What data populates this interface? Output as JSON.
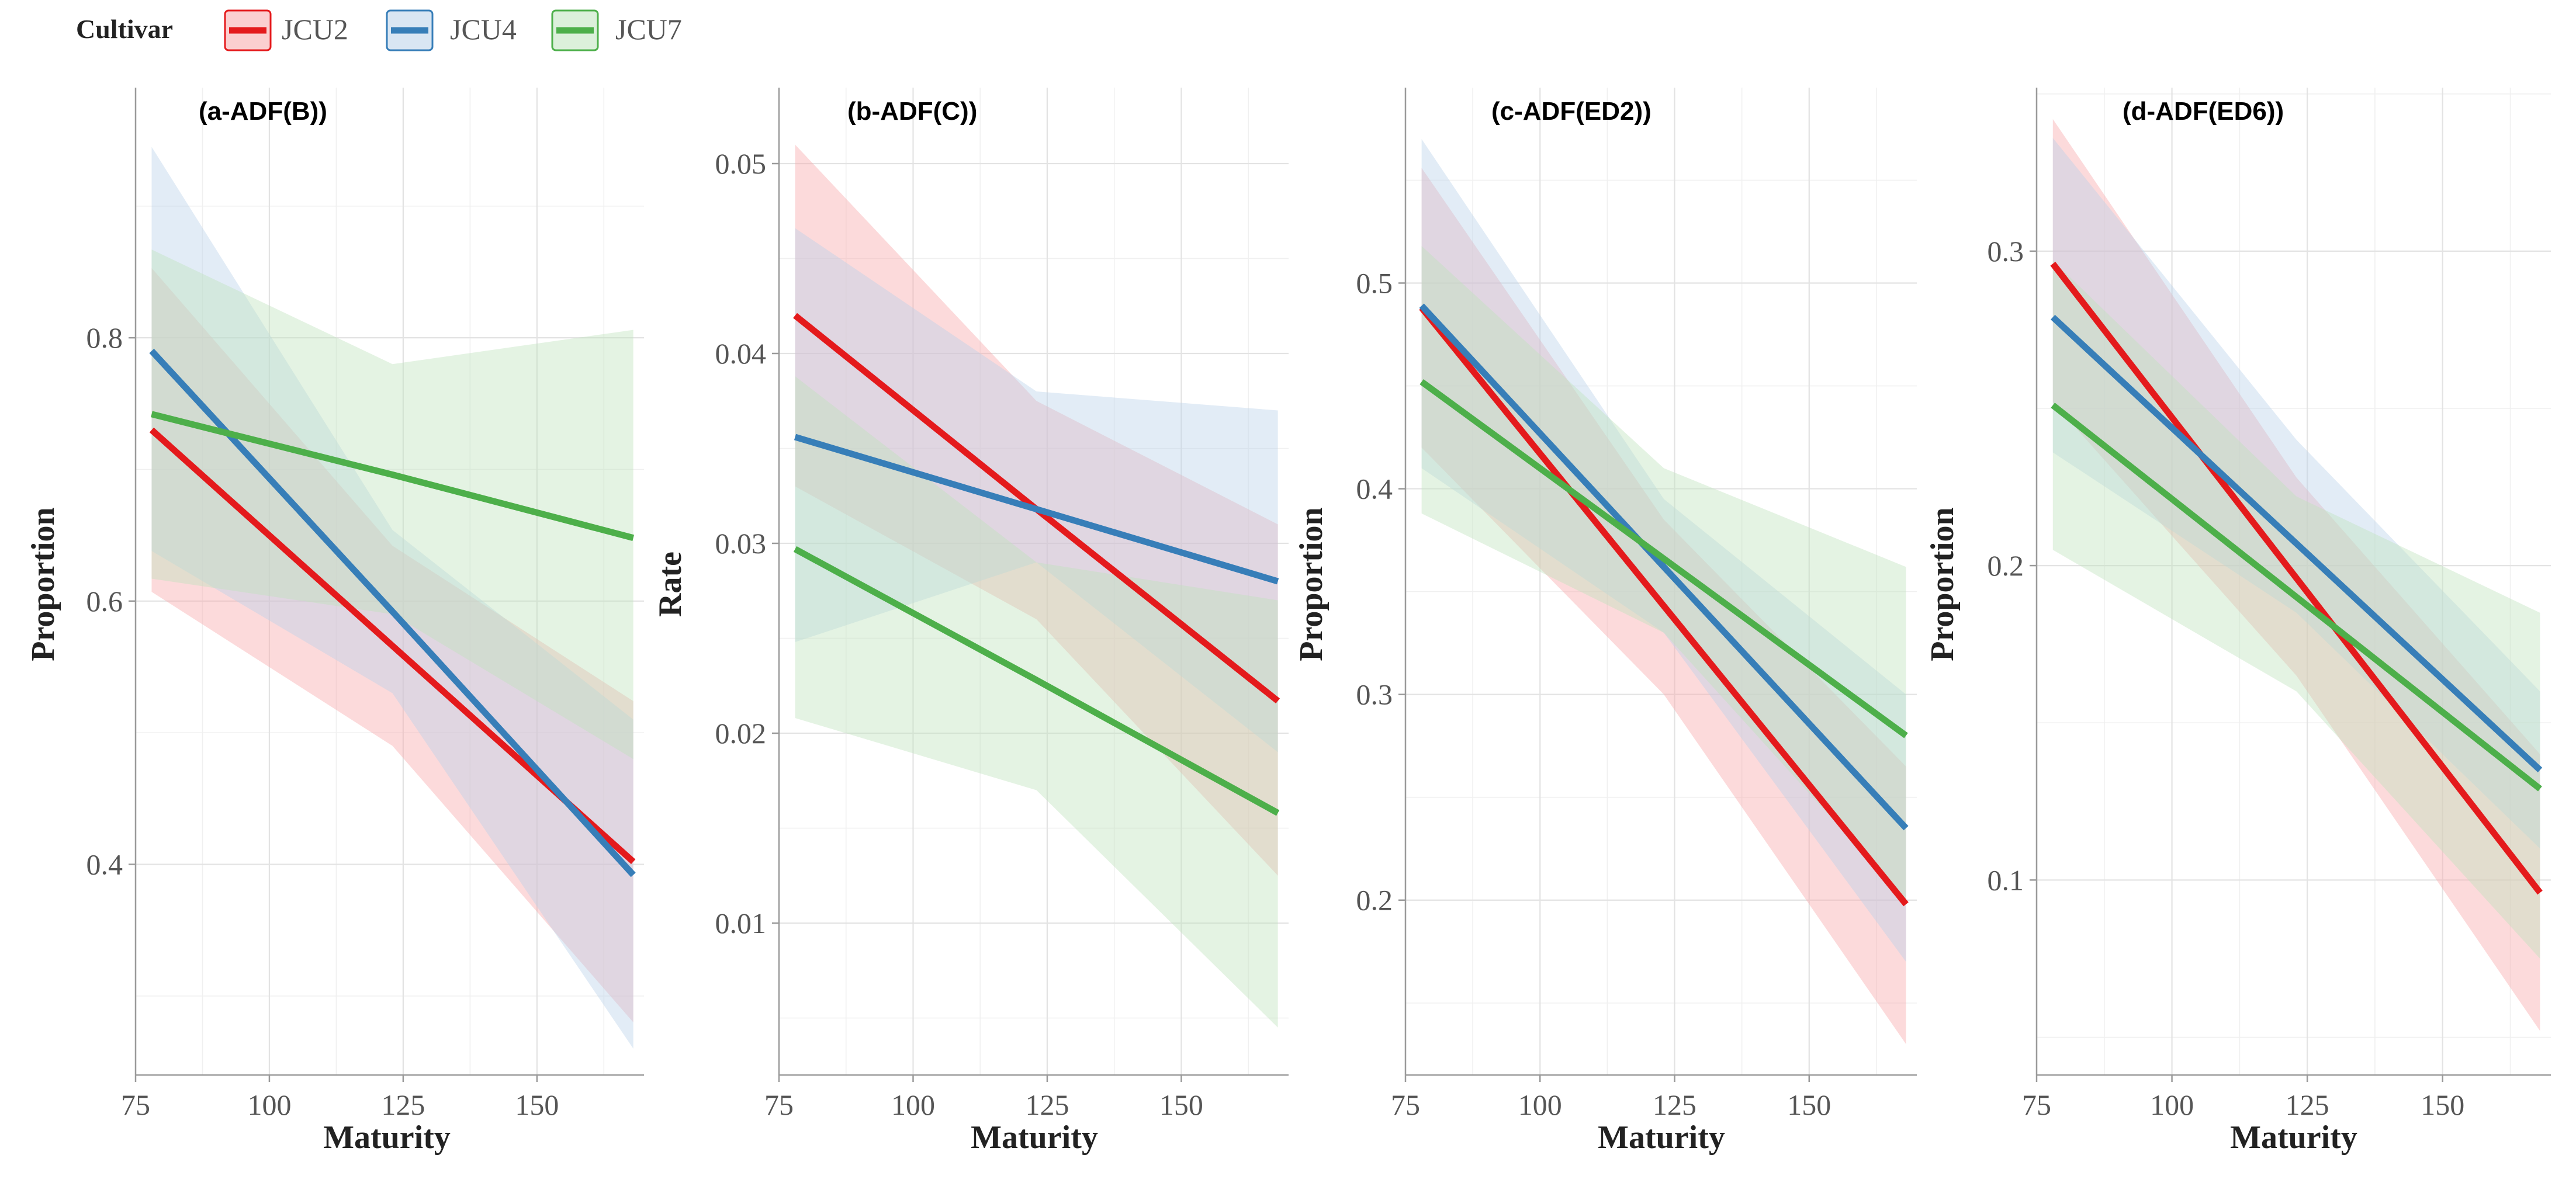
{
  "legend": {
    "title": "Cultivar",
    "entries": [
      {
        "name": "JCU2",
        "color": "#E41A1C",
        "fill": "#F7A7AA"
      },
      {
        "name": "JCU4",
        "color": "#377EB8",
        "fill": "#B9D1EA"
      },
      {
        "name": "JCU7",
        "color": "#4DAF4A",
        "fill": "#BFE3BD"
      }
    ]
  },
  "chart_data": [
    {
      "type": "line",
      "title": "(a-ADF(B))",
      "xlabel": "Maturity",
      "ylabel": "Proportion",
      "xlim": [
        75,
        170
      ],
      "ylim": [
        0.24,
        0.99
      ],
      "xticks": [
        75,
        100,
        125,
        150
      ],
      "yticks": [
        0.4,
        0.6,
        0.8
      ],
      "grid": true,
      "series": [
        {
          "name": "JCU2",
          "x": [
            78,
            123,
            168
          ],
          "y": [
            0.73,
            0.566,
            0.402
          ],
          "lower": [
            0.607,
            0.49,
            0.28
          ],
          "upper": [
            0.853,
            0.642,
            0.524
          ]
        },
        {
          "name": "JCU4",
          "x": [
            78,
            123,
            168
          ],
          "y": [
            0.79,
            0.592,
            0.392
          ],
          "lower": [
            0.638,
            0.53,
            0.26
          ],
          "upper": [
            0.945,
            0.654,
            0.51
          ]
        },
        {
          "name": "JCU7",
          "x": [
            78,
            123,
            168
          ],
          "y": [
            0.742,
            0.696,
            0.648
          ],
          "lower": [
            0.617,
            0.59,
            0.48
          ],
          "upper": [
            0.867,
            0.78,
            0.806
          ]
        }
      ]
    },
    {
      "type": "line",
      "title": "(b-ADF(C))",
      "xlabel": "Maturity",
      "ylabel": "Rate",
      "xlim": [
        75,
        170
      ],
      "ylim": [
        0.002,
        0.054
      ],
      "xticks": [
        75,
        100,
        125,
        150
      ],
      "yticks": [
        0.01,
        0.02,
        0.03,
        0.04,
        0.05
      ],
      "grid": true,
      "series": [
        {
          "name": "JCU2",
          "x": [
            78,
            123,
            168
          ],
          "y": [
            0.042,
            0.0318,
            0.0217
          ],
          "lower": [
            0.033,
            0.026,
            0.0125
          ],
          "upper": [
            0.051,
            0.0375,
            0.031
          ]
        },
        {
          "name": "JCU4",
          "x": [
            78,
            123,
            168
          ],
          "y": [
            0.0356,
            0.0318,
            0.028
          ],
          "lower": [
            0.0248,
            0.029,
            0.019
          ],
          "upper": [
            0.0466,
            0.038,
            0.037
          ]
        },
        {
          "name": "JCU7",
          "x": [
            78,
            123,
            168
          ],
          "y": [
            0.0297,
            0.0228,
            0.0158
          ],
          "lower": [
            0.0208,
            0.017,
            0.0045
          ],
          "upper": [
            0.0388,
            0.029,
            0.027
          ]
        }
      ]
    },
    {
      "type": "line",
      "title": "(c-ADF(ED2))",
      "xlabel": "Maturity",
      "ylabel": "Proportion",
      "xlim": [
        75,
        170
      ],
      "ylim": [
        0.115,
        0.595
      ],
      "xticks": [
        75,
        100,
        125,
        150
      ],
      "yticks": [
        0.2,
        0.3,
        0.4,
        0.5
      ],
      "grid": true,
      "series": [
        {
          "name": "JCU2",
          "x": [
            78,
            123,
            168
          ],
          "y": [
            0.488,
            0.343,
            0.198
          ],
          "lower": [
            0.42,
            0.3,
            0.13
          ],
          "upper": [
            0.556,
            0.385,
            0.265
          ]
        },
        {
          "name": "JCU4",
          "x": [
            78,
            123,
            168
          ],
          "y": [
            0.489,
            0.362,
            0.235
          ],
          "lower": [
            0.41,
            0.33,
            0.17
          ],
          "upper": [
            0.57,
            0.395,
            0.3
          ]
        },
        {
          "name": "JCU7",
          "x": [
            78,
            123,
            168
          ],
          "y": [
            0.452,
            0.366,
            0.28
          ],
          "lower": [
            0.388,
            0.33,
            0.2
          ],
          "upper": [
            0.518,
            0.41,
            0.362
          ]
        }
      ]
    },
    {
      "type": "line",
      "title": "(d-ADF(ED6))",
      "xlabel": "Maturity",
      "ylabel": "Proportion",
      "xlim": [
        75,
        170
      ],
      "ylim": [
        0.038,
        0.352
      ],
      "xticks": [
        75,
        100,
        125,
        150
      ],
      "yticks": [
        0.1,
        0.2,
        0.3
      ],
      "grid": true,
      "series": [
        {
          "name": "JCU2",
          "x": [
            78,
            123,
            168
          ],
          "y": [
            0.296,
            0.196,
            0.096
          ],
          "lower": [
            0.252,
            0.165,
            0.052
          ],
          "upper": [
            0.342,
            0.228,
            0.14
          ]
        },
        {
          "name": "JCU4",
          "x": [
            78,
            123,
            168
          ],
          "y": [
            0.279,
            0.207,
            0.135
          ],
          "lower": [
            0.236,
            0.185,
            0.11
          ],
          "upper": [
            0.336,
            0.24,
            0.16
          ]
        },
        {
          "name": "JCU7",
          "x": [
            78,
            123,
            168
          ],
          "y": [
            0.251,
            0.19,
            0.129
          ],
          "lower": [
            0.205,
            0.16,
            0.075
          ],
          "upper": [
            0.297,
            0.222,
            0.185
          ]
        }
      ]
    }
  ]
}
